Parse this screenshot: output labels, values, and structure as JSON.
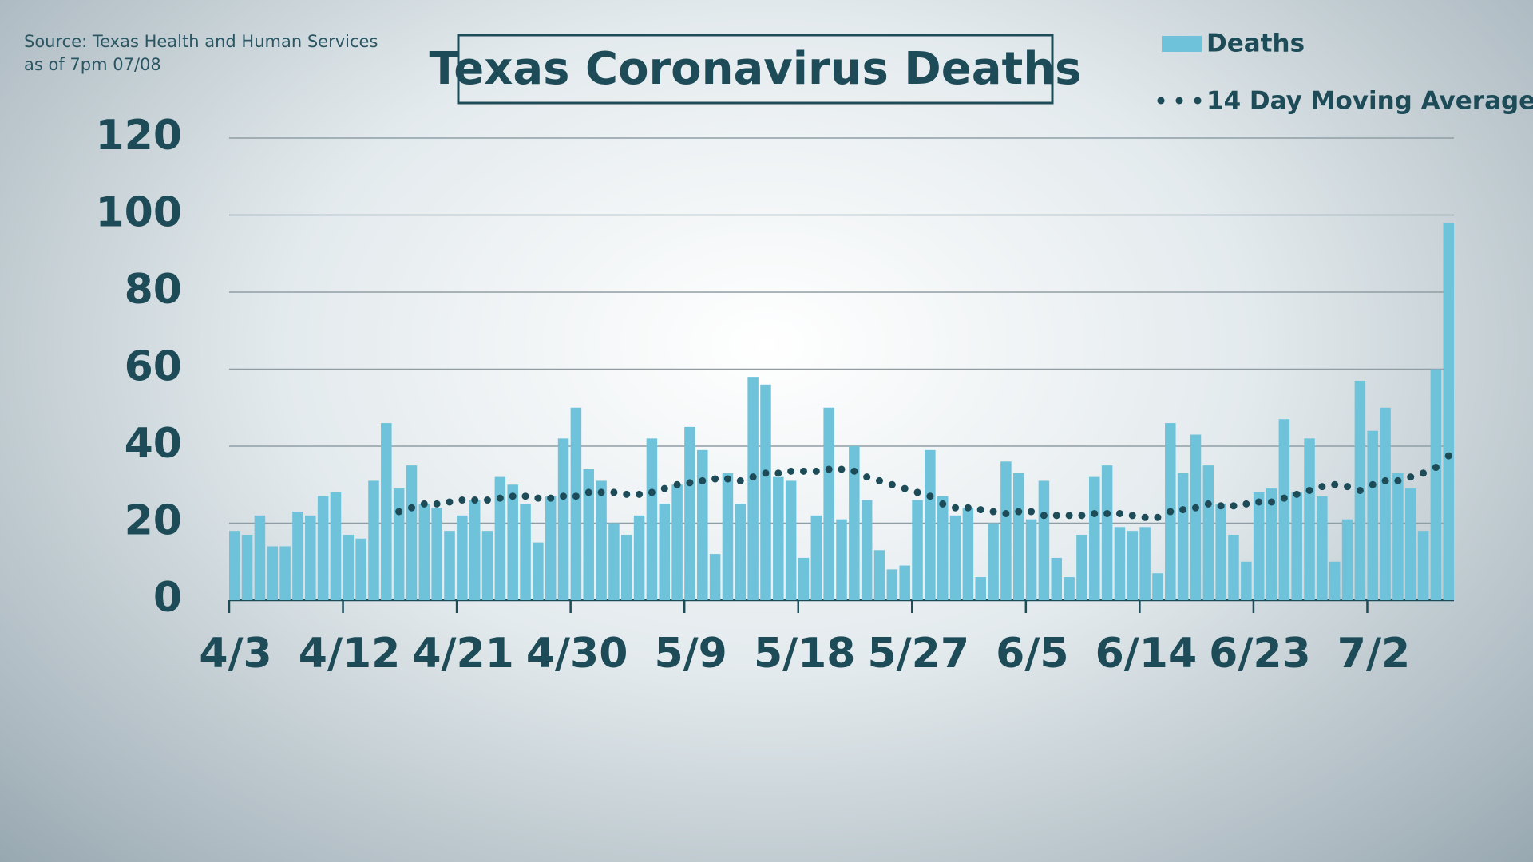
{
  "chart_data": {
    "type": "bar",
    "title": "Texas Coronavirus Deaths",
    "source": "Source: Texas Health and Human Services",
    "as_of": "as of 7pm 07/08",
    "categories": [
      "4/3",
      null,
      null,
      null,
      null,
      null,
      null,
      null,
      null,
      "4/12",
      null,
      null,
      null,
      null,
      null,
      null,
      null,
      null,
      "4/21",
      null,
      null,
      null,
      null,
      null,
      null,
      null,
      null,
      "4/30",
      null,
      null,
      null,
      null,
      null,
      null,
      null,
      null,
      "5/9",
      null,
      null,
      null,
      null,
      null,
      null,
      null,
      null,
      "5/18",
      null,
      null,
      null,
      null,
      null,
      null,
      null,
      null,
      "5/27",
      null,
      null,
      null,
      null,
      null,
      null,
      null,
      null,
      "6/5",
      null,
      null,
      null,
      null,
      null,
      null,
      null,
      null,
      "6/14",
      null,
      null,
      null,
      null,
      null,
      null,
      null,
      null,
      "6/23",
      null,
      null,
      null,
      null,
      null,
      null,
      null,
      null,
      "7/2",
      null,
      null,
      null,
      null,
      null,
      null
    ],
    "series": [
      {
        "name": "Deaths",
        "type": "bar",
        "color": "#6ec3db",
        "values": [
          18,
          17,
          22,
          14,
          14,
          23,
          22,
          27,
          28,
          17,
          16,
          31,
          46,
          29,
          35,
          25,
          24,
          18,
          22,
          26,
          18,
          32,
          30,
          25,
          15,
          27,
          42,
          50,
          34,
          31,
          20,
          17,
          22,
          42,
          25,
          30,
          45,
          39,
          12,
          33,
          25,
          58,
          56,
          32,
          31,
          11,
          22,
          50,
          21,
          40,
          26,
          13,
          8,
          9,
          26,
          39,
          27,
          22,
          24,
          6,
          20,
          36,
          33,
          21,
          31,
          11,
          6,
          17,
          32,
          35,
          19,
          18,
          19,
          7,
          46,
          33,
          43,
          35,
          25,
          17,
          10,
          28,
          29,
          47,
          28,
          42,
          27,
          10,
          21,
          57,
          44,
          50,
          33,
          29,
          18,
          60,
          98
        ]
      },
      {
        "name": "14 Day Moving Average",
        "type": "dotted-line",
        "color": "#1d4b57",
        "values": [
          null,
          null,
          null,
          null,
          null,
          null,
          null,
          null,
          null,
          null,
          null,
          null,
          null,
          23,
          24,
          25,
          25,
          25.5,
          26,
          26,
          26,
          26.5,
          27,
          27,
          26.5,
          26.5,
          27,
          27,
          28,
          28,
          28,
          27.5,
          27.5,
          28,
          29,
          30,
          30.5,
          31,
          31.5,
          31.5,
          31,
          32,
          33,
          33,
          33.5,
          33.5,
          33.5,
          34,
          34,
          33.5,
          32,
          31,
          30,
          29,
          28,
          27,
          25,
          24,
          24,
          23.5,
          23,
          22.5,
          23,
          23,
          22,
          22,
          22,
          22,
          22.5,
          22.5,
          22.5,
          22,
          21.5,
          21.5,
          23,
          23.5,
          24,
          25,
          24.5,
          24.5,
          25,
          25.5,
          25.5,
          26.5,
          27.5,
          28.5,
          29.5,
          30,
          29.5,
          28.5,
          30,
          31,
          31,
          32,
          33,
          34.5,
          37.5
        ]
      }
    ],
    "ylim": [
      0,
      120
    ],
    "yticks": [
      0,
      20,
      40,
      60,
      80,
      100,
      120
    ],
    "grid": true,
    "legend": "top-right"
  }
}
